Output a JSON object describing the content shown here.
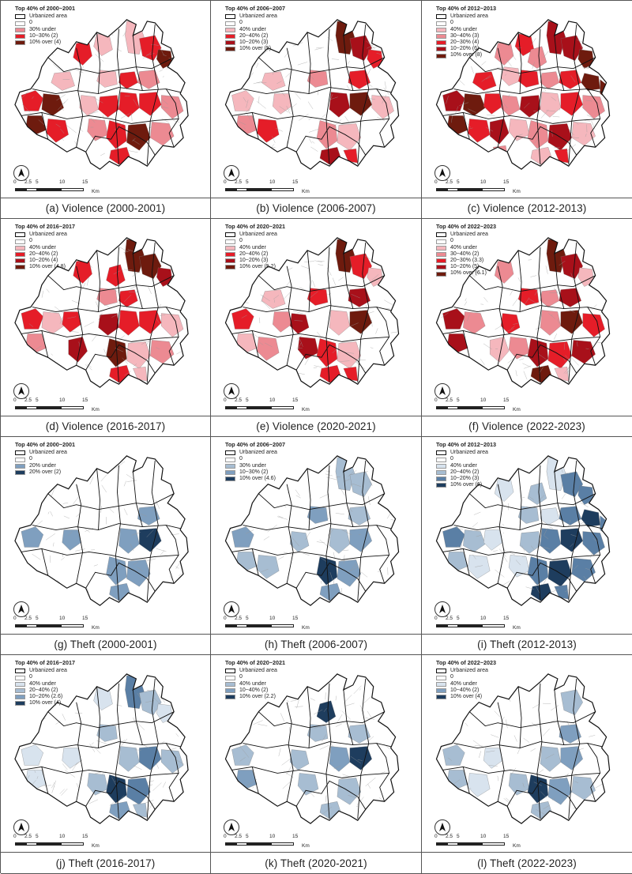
{
  "colors": {
    "violence": [
      "#ffffff",
      "#f5b7bd",
      "#ec8a92",
      "#e51d28",
      "#a8101a",
      "#6e1b0e"
    ],
    "theft": [
      "#ffffff",
      "#d8e3ee",
      "#a7bdd2",
      "#7f9fbf",
      "#5a7fa5",
      "#1e3d5e"
    ],
    "boundary": "#111111",
    "district": "#9a9a9a"
  },
  "scalebar": {
    "ticks": [
      "0",
      "2.5",
      "5",
      "10",
      "15"
    ],
    "unit": "Km"
  },
  "legend_common": {
    "urbanized": "Urbanized area",
    "zero": "0"
  },
  "panels": [
    {
      "caption": "(a) Violence (2000-2001)",
      "scheme": "violence",
      "legend_title": "Top 40% of 2000~2001",
      "classes": [
        {
          "label": "30% under",
          "color_index": 2
        },
        {
          "label": "10~30% (2)",
          "color_index": 3
        },
        {
          "label": "10% over (4)",
          "color_index": 5
        }
      ]
    },
    {
      "caption": "(b) Violence (2006-2007)",
      "scheme": "violence",
      "legend_title": "Top 40% of 2006~2007",
      "classes": [
        {
          "label": "40% under",
          "color_index": 1
        },
        {
          "label": "20~40% (2)",
          "color_index": 3
        },
        {
          "label": "10~20% (3)",
          "color_index": 4
        },
        {
          "label": "10% over (5)",
          "color_index": 5
        }
      ]
    },
    {
      "caption": "(c) Violence (2012-2013)",
      "scheme": "violence",
      "legend_title": "Top 40% of 2012~2013",
      "classes": [
        {
          "label": "40% under",
          "color_index": 1
        },
        {
          "label": "30~40% (3)",
          "color_index": 2
        },
        {
          "label": "20~30% (4)",
          "color_index": 3
        },
        {
          "label": "10~20% (6)",
          "color_index": 4
        },
        {
          "label": "10% over (8)",
          "color_index": 5
        }
      ]
    },
    {
      "caption": "(d) Violence (2016-2017)",
      "scheme": "violence",
      "legend_title": "Top 40% of 2016~2017",
      "classes": [
        {
          "label": "40% under",
          "color_index": 1
        },
        {
          "label": "20~40% (2)",
          "color_index": 3
        },
        {
          "label": "10~20% (4)",
          "color_index": 4
        },
        {
          "label": "10% over (4.8)",
          "color_index": 5
        }
      ]
    },
    {
      "caption": "(e) Violence (2020-2021)",
      "scheme": "violence",
      "legend_title": "Top 40% of 2020~2021",
      "classes": [
        {
          "label": "40% under",
          "color_index": 1
        },
        {
          "label": "20~40% (2)",
          "color_index": 3
        },
        {
          "label": "10~20% (3)",
          "color_index": 4
        },
        {
          "label": "10% over (5.2)",
          "color_index": 5
        }
      ]
    },
    {
      "caption": "(f) Violence (2022-2023)",
      "scheme": "violence",
      "legend_title": "Top 40% of 2022~2023",
      "classes": [
        {
          "label": "40% under",
          "color_index": 1
        },
        {
          "label": "30~40% (2)",
          "color_index": 2
        },
        {
          "label": "20~30% (3.3)",
          "color_index": 3
        },
        {
          "label": "10~20% (5)",
          "color_index": 4
        },
        {
          "label": "10% over (6.1)",
          "color_index": 5
        }
      ]
    },
    {
      "caption": "(g) Theft (2000-2001)",
      "scheme": "theft",
      "legend_title": "Top 40% of 2000~2001",
      "classes": [
        {
          "label": "20% under",
          "color_index": 3
        },
        {
          "label": "20% over (2)",
          "color_index": 5
        }
      ]
    },
    {
      "caption": "(h) Theft (2006-2007)",
      "scheme": "theft",
      "legend_title": "Top 40% of 2006~2007",
      "classes": [
        {
          "label": "30% under",
          "color_index": 2
        },
        {
          "label": "10~30% (2)",
          "color_index": 3
        },
        {
          "label": "10% over (4.6)",
          "color_index": 5
        }
      ]
    },
    {
      "caption": "(i) Theft (2012-2013)",
      "scheme": "theft",
      "legend_title": "Top 40% of 2012~2013",
      "classes": [
        {
          "label": "40% under",
          "color_index": 1
        },
        {
          "label": "20~40% (2)",
          "color_index": 2
        },
        {
          "label": "10~20% (3)",
          "color_index": 4
        },
        {
          "label": "10% over (6)",
          "color_index": 5
        }
      ]
    },
    {
      "caption": "(j) Theft (2016-2017)",
      "scheme": "theft",
      "legend_title": "Top 40% of 2016~2017",
      "classes": [
        {
          "label": "40% under",
          "color_index": 1
        },
        {
          "label": "20~40% (2)",
          "color_index": 2
        },
        {
          "label": "10~20% (2.6)",
          "color_index": 3
        },
        {
          "label": "10% over (4)",
          "color_index": 5
        }
      ]
    },
    {
      "caption": "(k) Theft (2020-2021)",
      "scheme": "theft",
      "legend_title": "Top 40% of 2020~2021",
      "classes": [
        {
          "label": "40% under",
          "color_index": 2
        },
        {
          "label": "10~40% (2)",
          "color_index": 3
        },
        {
          "label": "10% over (2.2)",
          "color_index": 5
        }
      ]
    },
    {
      "caption": "(l) Theft (2022-2023)",
      "scheme": "theft",
      "legend_title": "Top 40% of 2022~2023",
      "classes": [
        {
          "label": "40% under",
          "color_index": 1
        },
        {
          "label": "10~40% (2)",
          "color_index": 3
        },
        {
          "label": "10% over (4)",
          "color_index": 5
        }
      ]
    }
  ]
}
